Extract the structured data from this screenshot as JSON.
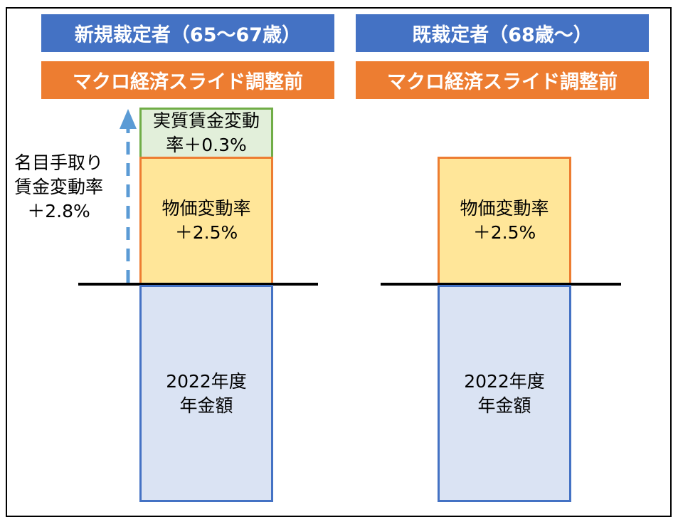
{
  "left": {
    "title": "新規裁定者（65～67歳）",
    "subtitle": "マクロ経済スライド調整前",
    "real_wage": [
      "実質賃金変動",
      "率＋0.3%"
    ],
    "price": [
      "物価変動率",
      "＋2.5%"
    ],
    "base": [
      "2022年度",
      "年金額"
    ],
    "nominal_wage": [
      "名目手取り",
      "賃金変動率",
      "＋2.8%"
    ]
  },
  "right": {
    "title": "既裁定者（68歳～）",
    "subtitle": "マクロ経済スライド調整前",
    "price": [
      "物価変動率",
      "＋2.5%"
    ],
    "base": [
      "2022年度",
      "年金額"
    ]
  },
  "colors": {
    "header_blue": "#4472c4",
    "header_orange": "#ed7d31",
    "price_fill": "#ffe699",
    "real_wage_fill": "#e2efda",
    "base_fill": "#dae3f3",
    "arrow": "#5b9bd5"
  }
}
